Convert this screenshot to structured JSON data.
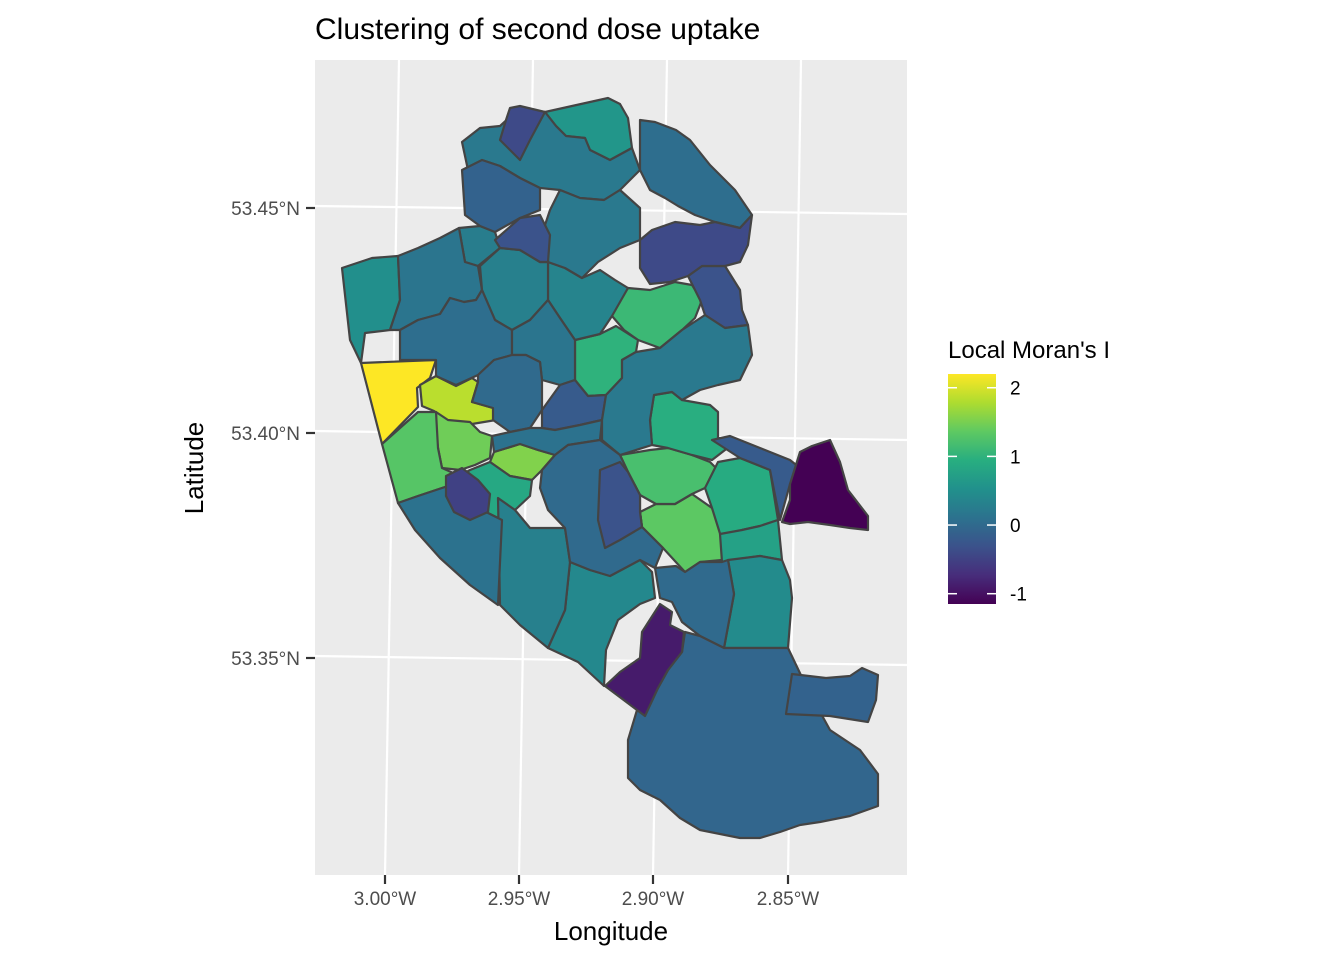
{
  "chart_data": {
    "type": "choropleth",
    "title": "Clustering of second dose uptake",
    "xlabel": "Longitude",
    "ylabel": "Latitude",
    "x_ticks": [
      "3.00°W",
      "2.95°W",
      "2.90°W",
      "2.85°W"
    ],
    "y_ticks": [
      "53.45°N",
      "53.40°N",
      "53.35°N"
    ],
    "grid": true,
    "legend": {
      "title": "Local Moran's I",
      "position": "right",
      "min": -1.15,
      "max": 2.2,
      "tick_values": [
        2,
        1,
        0,
        -1
      ],
      "tick_labels": [
        "2",
        "1",
        "0",
        "-1"
      ],
      "palette": "viridis"
    },
    "regions": [
      {
        "name": "",
        "value": 2.2
      },
      {
        "name": "",
        "value": 1.85
      },
      {
        "name": "",
        "value": 1.55
      },
      {
        "name": "",
        "value": 1.45
      },
      {
        "name": "",
        "value": 1.35
      },
      {
        "name": "",
        "value": 1.3
      },
      {
        "name": "",
        "value": 1.2
      },
      {
        "name": "",
        "value": 1.1
      },
      {
        "name": "",
        "value": 1.0
      },
      {
        "name": "",
        "value": 0.95
      },
      {
        "name": "",
        "value": 0.9
      },
      {
        "name": "",
        "value": 0.85
      },
      {
        "name": "",
        "value": 0.75
      },
      {
        "name": "",
        "value": 0.6
      },
      {
        "name": "",
        "value": 0.5
      },
      {
        "name": "",
        "value": 0.45
      },
      {
        "name": "",
        "value": 0.4
      },
      {
        "name": "",
        "value": 0.35
      },
      {
        "name": "",
        "value": 0.3
      },
      {
        "name": "",
        "value": 0.25
      },
      {
        "name": "",
        "value": 0.2
      },
      {
        "name": "",
        "value": 0.15
      },
      {
        "name": "",
        "value": 0.1
      },
      {
        "name": "",
        "value": 0.05
      },
      {
        "name": "",
        "value": 0.0
      },
      {
        "name": "",
        "value": -0.05
      },
      {
        "name": "",
        "value": -0.1
      },
      {
        "name": "",
        "value": -0.2
      },
      {
        "name": "",
        "value": -0.3
      },
      {
        "name": "",
        "value": -0.4
      },
      {
        "name": "",
        "value": -0.5
      },
      {
        "name": "",
        "value": -0.9
      },
      {
        "name": "",
        "value": -1.15
      }
    ]
  }
}
